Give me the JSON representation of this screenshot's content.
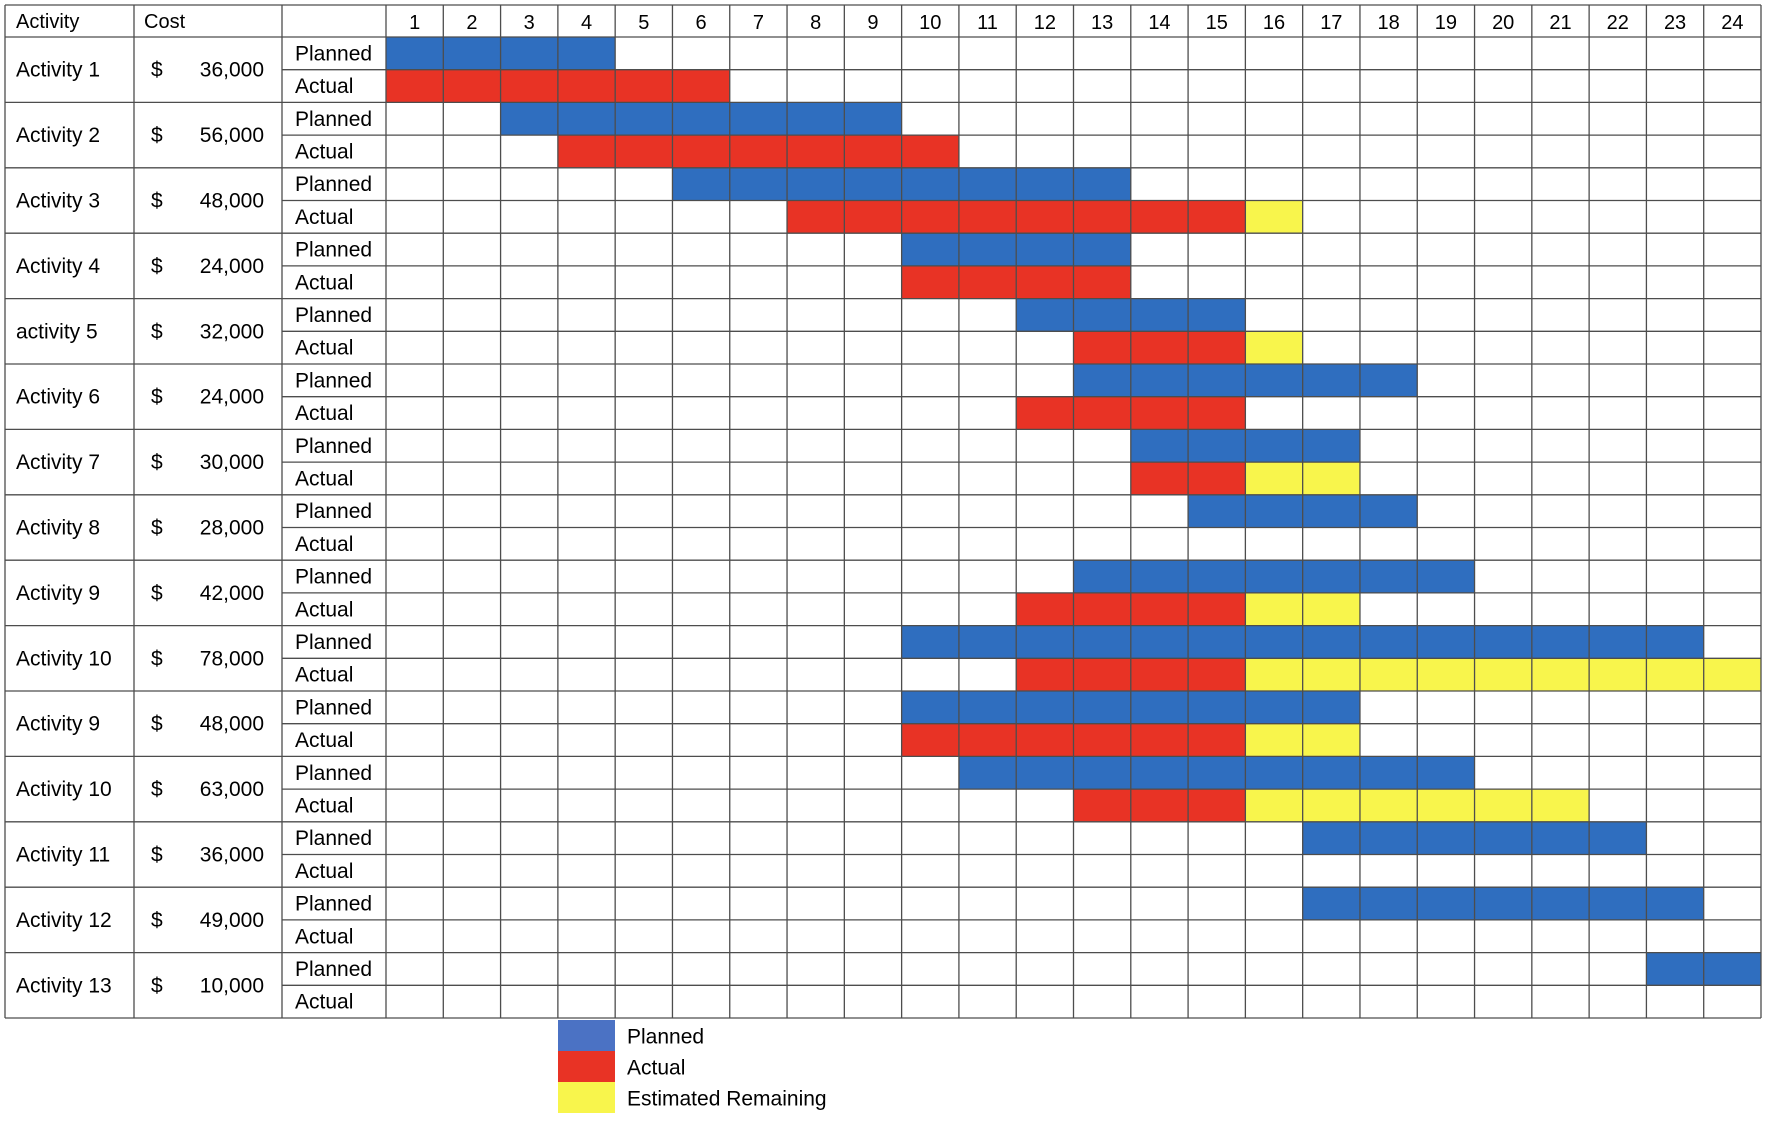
{
  "chart_data": {
    "type": "gantt",
    "headers": {
      "activity": "Activity",
      "cost": "Cost"
    },
    "currency_symbol": "$",
    "periods": [
      "1",
      "2",
      "3",
      "4",
      "5",
      "6",
      "7",
      "8",
      "9",
      "10",
      "11",
      "12",
      "13",
      "14",
      "15",
      "16",
      "17",
      "18",
      "19",
      "20",
      "21",
      "22",
      "23",
      "24"
    ],
    "row_labels": {
      "planned": "Planned",
      "actual": "Actual"
    },
    "colors": {
      "planned": "#2F6EBF",
      "actual": "#E83325",
      "remaining": "#F8F54C",
      "grid": "#4d4d4d"
    },
    "activities": [
      {
        "name": "Activity 1",
        "cost": "36,000",
        "planned": [
          1,
          4
        ],
        "actual": [
          1,
          6
        ],
        "remaining": null
      },
      {
        "name": "Activity 2",
        "cost": "56,000",
        "planned": [
          3,
          9
        ],
        "actual": [
          4,
          10
        ],
        "remaining": null
      },
      {
        "name": "Activity 3",
        "cost": "48,000",
        "planned": [
          6,
          13
        ],
        "actual": [
          8,
          15
        ],
        "remaining": [
          16,
          16
        ]
      },
      {
        "name": "Activity 4",
        "cost": "24,000",
        "planned": [
          10,
          13
        ],
        "actual": [
          10,
          13
        ],
        "remaining": null
      },
      {
        "name": "activity 5",
        "cost": "32,000",
        "planned": [
          12,
          15
        ],
        "actual": [
          13,
          15
        ],
        "remaining": [
          16,
          16
        ]
      },
      {
        "name": "Activity 6",
        "cost": "24,000",
        "planned": [
          13,
          18
        ],
        "actual": [
          12,
          15
        ],
        "remaining": null
      },
      {
        "name": "Activity 7",
        "cost": "30,000",
        "planned": [
          14,
          17
        ],
        "actual": [
          14,
          15
        ],
        "remaining": [
          16,
          17
        ]
      },
      {
        "name": "Activity 8",
        "cost": "28,000",
        "planned": [
          15,
          18
        ],
        "actual": null,
        "remaining": null
      },
      {
        "name": "Activity 9",
        "cost": "42,000",
        "planned": [
          13,
          19
        ],
        "actual": [
          12,
          15
        ],
        "remaining": [
          16,
          17
        ]
      },
      {
        "name": "Activity 10",
        "cost": "78,000",
        "planned": [
          10,
          23
        ],
        "actual": [
          12,
          15
        ],
        "remaining": [
          16,
          24
        ]
      },
      {
        "name": "Activity 9",
        "cost": "48,000",
        "planned": [
          10,
          17
        ],
        "actual": [
          10,
          15
        ],
        "remaining": [
          16,
          17
        ]
      },
      {
        "name": "Activity 10",
        "cost": "63,000",
        "planned": [
          11,
          19
        ],
        "actual": [
          13,
          15
        ],
        "remaining": [
          16,
          21
        ]
      },
      {
        "name": "Activity 11",
        "cost": "36,000",
        "planned": [
          17,
          22
        ],
        "actual": null,
        "remaining": null
      },
      {
        "name": "Activity 12",
        "cost": "49,000",
        "planned": [
          17,
          23
        ],
        "actual": null,
        "remaining": null
      },
      {
        "name": "Activity 13",
        "cost": "10,000",
        "planned": [
          23,
          24
        ],
        "actual": null,
        "remaining": null
      }
    ],
    "legend": [
      {
        "key": "planned",
        "label": "Planned"
      },
      {
        "key": "actual",
        "label": "Actual"
      },
      {
        "key": "remaining",
        "label": "Estimated Remaining"
      }
    ]
  }
}
